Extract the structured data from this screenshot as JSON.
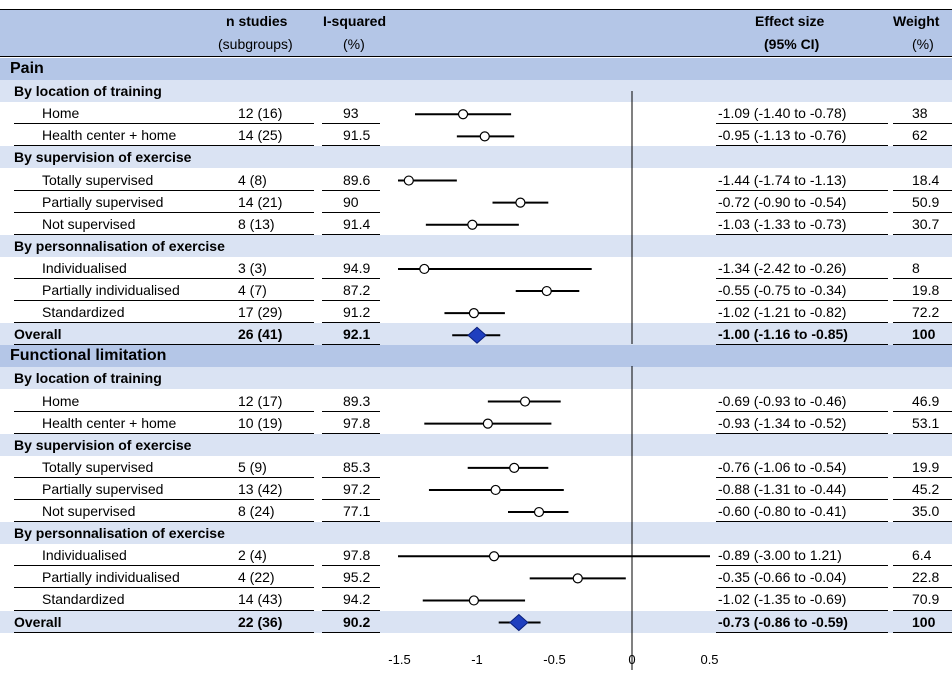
{
  "header": {
    "col_n": "n studies",
    "col_n_sub": "(subgroups)",
    "col_i2": "I-squared",
    "col_i2_sub": "(%)",
    "col_es": "Effect size",
    "col_es_sub": "(95% CI)",
    "col_w": "Weight",
    "col_w_sub": "(%)"
  },
  "colors": {
    "section_bg": "#b4c6e7",
    "subgroup_bg": "#dae3f3",
    "diamond": "#1f3fbf"
  },
  "x_ticks": [
    "-1.5",
    "-1",
    "-0.5",
    "0",
    "0.5"
  ],
  "chart_data": {
    "type": "forest",
    "xlim": [
      -1.5,
      0.5
    ],
    "reference_line": 0,
    "grid": false,
    "sections": [
      {
        "title": "Pain",
        "groups": [
          {
            "title": "By location of training",
            "rows": [
              {
                "label": "Home",
                "n": "12 (16)",
                "i2": "93",
                "es": -1.09,
                "lo": -1.4,
                "hi": -0.78,
                "ci_text": "-1.09 (-1.40 to -0.78)",
                "weight": "38"
              },
              {
                "label": "Health center + home",
                "n": "14 (25)",
                "i2": "91.5",
                "es": -0.95,
                "lo": -1.13,
                "hi": -0.76,
                "ci_text": "-0.95 (-1.13 to -0.76)",
                "weight": "62"
              }
            ]
          },
          {
            "title": "By supervision of exercise",
            "rows": [
              {
                "label": "Totally supervised",
                "n": "4 (8)",
                "i2": "89.6",
                "es": -1.44,
                "lo": -1.74,
                "hi": -1.13,
                "ci_text": "-1.44 (-1.74 to -1.13)",
                "weight": "18.4"
              },
              {
                "label": "Partially supervised",
                "n": "14 (21)",
                "i2": "90",
                "es": -0.72,
                "lo": -0.9,
                "hi": -0.54,
                "ci_text": "-0.72 (-0.90 to -0.54)",
                "weight": "50.9"
              },
              {
                "label": "Not supervised",
                "n": "8 (13)",
                "i2": "91.4",
                "es": -1.03,
                "lo": -1.33,
                "hi": -0.73,
                "ci_text": "-1.03 (-1.33 to -0.73)",
                "weight": "30.7"
              }
            ]
          },
          {
            "title": "By personnalisation of exercise",
            "rows": [
              {
                "label": "Individualised",
                "n": "3 (3)",
                "i2": "94.9",
                "es": -1.34,
                "lo": -2.42,
                "hi": -0.26,
                "ci_text": "-1.34 (-2.42 to -0.26)",
                "weight": "8"
              },
              {
                "label": "Partially individualised",
                "n": "4 (7)",
                "i2": "87.2",
                "es": -0.55,
                "lo": -0.75,
                "hi": -0.34,
                "ci_text": "-0.55 (-0.75 to -0.34)",
                "weight": "19.8"
              },
              {
                "label": "Standardized",
                "n": "17 (29)",
                "i2": "91.2",
                "es": -1.02,
                "lo": -1.21,
                "hi": -0.82,
                "ci_text": "-1.02 (-1.21 to -0.82)",
                "weight": "72.2"
              }
            ]
          }
        ],
        "overall": {
          "label": "Overall",
          "n": "26 (41)",
          "i2": "92.1",
          "es": -1.0,
          "lo": -1.16,
          "hi": -0.85,
          "ci_text": "-1.00 (-1.16 to -0.85)",
          "weight": "100"
        }
      },
      {
        "title": "Functional limitation",
        "groups": [
          {
            "title": "By location of training",
            "rows": [
              {
                "label": "Home",
                "n": "12 (17)",
                "i2": "89.3",
                "es": -0.69,
                "lo": -0.93,
                "hi": -0.46,
                "ci_text": "-0.69 (-0.93 to -0.46)",
                "weight": "46.9"
              },
              {
                "label": "Health center + home",
                "n": "10 (19)",
                "i2": "97.8",
                "es": -0.93,
                "lo": -1.34,
                "hi": -0.52,
                "ci_text": "-0.93 (-1.34 to -0.52)",
                "weight": "53.1"
              }
            ]
          },
          {
            "title": "By supervision of exercise",
            "rows": [
              {
                "label": "Totally supervised",
                "n": "5 (9)",
                "i2": "85.3",
                "es": -0.76,
                "lo": -1.06,
                "hi": -0.54,
                "ci_text": "-0.76 (-1.06 to -0.54)",
                "weight": "19.9"
              },
              {
                "label": "Partially supervised",
                "n": "13 (42)",
                "i2": "97.2",
                "es": -0.88,
                "lo": -1.31,
                "hi": -0.44,
                "ci_text": "-0.88 (-1.31 to -0.44)",
                "weight": "45.2"
              },
              {
                "label": "Not supervised",
                "n": "8 (24)",
                "i2": "77.1",
                "es": -0.6,
                "lo": -0.8,
                "hi": -0.41,
                "ci_text": "-0.60 (-0.80 to -0.41)",
                "weight": "35.0"
              }
            ]
          },
          {
            "title": "By personnalisation of exercise",
            "rows": [
              {
                "label": "Individualised",
                "n": "2 (4)",
                "i2": "97.8",
                "es": -0.89,
                "lo": -3.0,
                "hi": 1.21,
                "ci_text": "-0.89 (-3.00 to 1.21)",
                "weight": "6.4"
              },
              {
                "label": "Partially individualised",
                "n": "4 (22)",
                "i2": "95.2",
                "es": -0.35,
                "lo": -0.66,
                "hi": -0.04,
                "ci_text": "-0.35 (-0.66 to -0.04)",
                "weight": "22.8"
              },
              {
                "label": "Standardized",
                "n": "14 (43)",
                "i2": "94.2",
                "es": -1.02,
                "lo": -1.35,
                "hi": -0.69,
                "ci_text": "-1.02 (-1.35 to -0.69)",
                "weight": "70.9"
              }
            ]
          }
        ],
        "overall": {
          "label": "Overall",
          "n": "22 (36)",
          "i2": "90.2",
          "es": -0.73,
          "lo": -0.86,
          "hi": -0.59,
          "ci_text": "-0.73 (-0.86 to -0.59)",
          "weight": "100"
        }
      }
    ]
  }
}
